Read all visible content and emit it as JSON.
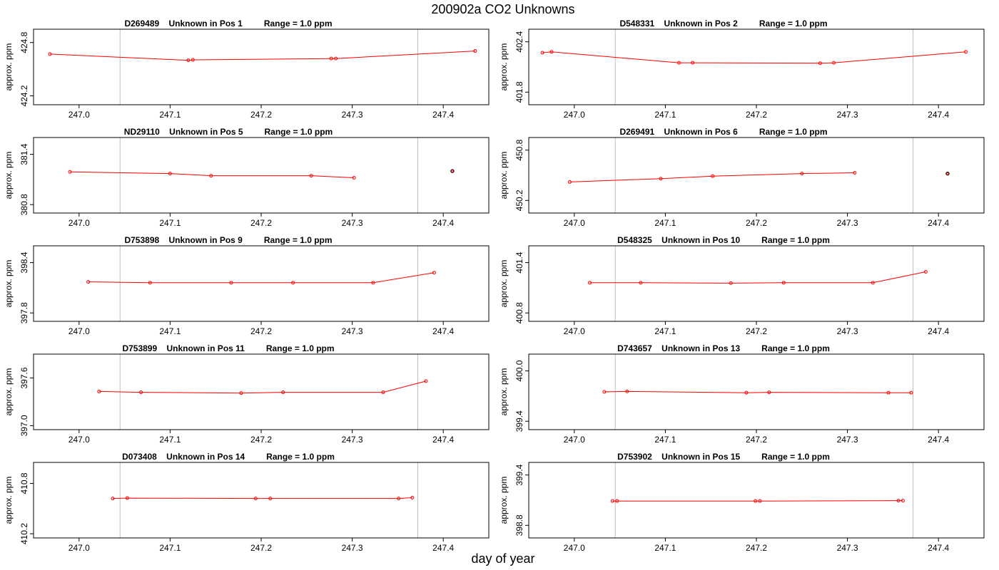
{
  "title": "200902a  CO2 Unknowns",
  "xlabel": "day of year",
  "chart_data": [
    {
      "type": "line",
      "title": "D269489    Unknown in Pos 1         Range = 1.0 ppm",
      "ylabel": "approx. ppm",
      "xlim": [
        246.95,
        247.45
      ],
      "ylim": [
        424.1,
        424.95
      ],
      "xticks": [
        "247.0",
        "247.1",
        "247.2",
        "247.3",
        "247.4"
      ],
      "yticks": [
        "424.2",
        "424.8"
      ],
      "vlines": [
        247.045,
        247.372
      ],
      "series": [
        {
          "x": [
            246.968,
            247.12,
            247.125,
            247.277,
            247.282,
            247.435
          ],
          "y": [
            424.67,
            424.6,
            424.605,
            424.62,
            424.62,
            424.705
          ]
        }
      ],
      "extra_points": []
    },
    {
      "type": "line",
      "title": "D548331    Unknown in Pos 2         Range = 1.0 ppm",
      "ylabel": "approx. ppm",
      "xlim": [
        246.95,
        247.45
      ],
      "ylim": [
        401.65,
        402.55
      ],
      "xticks": [
        "247.0",
        "247.1",
        "247.2",
        "247.3",
        "247.4"
      ],
      "yticks": [
        "401.8",
        "402.4"
      ],
      "vlines": [
        247.045,
        247.372
      ],
      "series": [
        {
          "x": [
            246.965,
            246.975,
            247.115,
            247.13,
            247.27,
            247.285,
            247.43
          ],
          "y": [
            402.27,
            402.28,
            402.15,
            402.15,
            402.145,
            402.15,
            402.28
          ]
        }
      ],
      "extra_points": []
    },
    {
      "type": "line",
      "title": "ND29110    Unknown in Pos 5         Range = 1.0 ppm",
      "ylabel": "approx. ppm",
      "xlim": [
        246.95,
        247.45
      ],
      "ylim": [
        380.7,
        381.6
      ],
      "xticks": [
        "247.0",
        "247.1",
        "247.2",
        "247.3",
        "247.4"
      ],
      "yticks": [
        "380.8",
        "381.4"
      ],
      "vlines": [
        247.045,
        247.372
      ],
      "series": [
        {
          "x": [
            246.99,
            247.1,
            247.145,
            247.255,
            247.302
          ],
          "y": [
            381.19,
            381.17,
            381.145,
            381.145,
            381.12
          ]
        }
      ],
      "extra_points": [
        {
          "x": 247.41,
          "y": 381.2
        }
      ]
    },
    {
      "type": "line",
      "title": "D269491    Unknown in Pos 6         Range = 1.0 ppm",
      "ylabel": "approx. ppm",
      "xlim": [
        246.95,
        247.45
      ],
      "ylim": [
        450.05,
        450.95
      ],
      "xticks": [
        "247.0",
        "247.1",
        "247.2",
        "247.3",
        "247.4"
      ],
      "yticks": [
        "450.2",
        "450.8"
      ],
      "vlines": [
        247.045,
        247.372
      ],
      "series": [
        {
          "x": [
            246.995,
            247.095,
            247.152,
            247.25,
            247.308
          ],
          "y": [
            450.42,
            450.46,
            450.49,
            450.52,
            450.53
          ]
        }
      ],
      "extra_points": [
        {
          "x": 247.41,
          "y": 450.52
        }
      ]
    },
    {
      "type": "line",
      "title": "D753898    Unknown in Pos 9         Range = 1.0 ppm",
      "ylabel": "approx. ppm",
      "xlim": [
        246.95,
        247.45
      ],
      "ylim": [
        397.7,
        398.6
      ],
      "xticks": [
        "247.0",
        "247.1",
        "247.2",
        "247.3",
        "247.4"
      ],
      "yticks": [
        "397.8",
        "398.4"
      ],
      "vlines": [
        247.045,
        247.372
      ],
      "series": [
        {
          "x": [
            247.01,
            247.078,
            247.167,
            247.235,
            247.323,
            247.39
          ],
          "y": [
            398.17,
            398.16,
            398.16,
            398.16,
            398.16,
            398.28
          ]
        }
      ],
      "extra_points": []
    },
    {
      "type": "line",
      "title": "D548325    Unknown in Pos 10         Range = 1.0 ppm",
      "ylabel": "approx. ppm",
      "xlim": [
        246.95,
        247.45
      ],
      "ylim": [
        400.7,
        401.6
      ],
      "xticks": [
        "247.0",
        "247.1",
        "247.2",
        "247.3",
        "247.4"
      ],
      "yticks": [
        "400.8",
        "401.4"
      ],
      "vlines": [
        247.045,
        247.372
      ],
      "series": [
        {
          "x": [
            247.017,
            247.073,
            247.172,
            247.23,
            247.328,
            247.386
          ],
          "y": [
            401.16,
            401.16,
            401.155,
            401.16,
            401.16,
            401.29
          ]
        }
      ],
      "extra_points": []
    },
    {
      "type": "line",
      "title": "D753899    Unknown in Pos 11         Range = 1.0 ppm",
      "ylabel": "approx. ppm",
      "xlim": [
        246.95,
        247.45
      ],
      "ylim": [
        396.95,
        397.9
      ],
      "xticks": [
        "247.0",
        "247.1",
        "247.2",
        "247.3",
        "247.4"
      ],
      "yticks": [
        "397.0",
        "397.6"
      ],
      "vlines": [
        247.045,
        247.372
      ],
      "series": [
        {
          "x": [
            247.022,
            247.068,
            247.178,
            247.224,
            247.334,
            247.381
          ],
          "y": [
            397.43,
            397.42,
            397.41,
            397.42,
            397.42,
            397.56
          ]
        }
      ],
      "extra_points": []
    },
    {
      "type": "line",
      "title": "D743657    Unknown in Pos 13         Range = 1.0 ppm",
      "ylabel": "approx. ppm",
      "xlim": [
        246.95,
        247.45
      ],
      "ylim": [
        399.3,
        400.2
      ],
      "xticks": [
        "247.0",
        "247.1",
        "247.2",
        "247.3",
        "247.4"
      ],
      "yticks": [
        "399.4",
        "400.0"
      ],
      "vlines": [
        247.045,
        247.372
      ],
      "series": [
        {
          "x": [
            247.033,
            247.058,
            247.189,
            247.214,
            247.345,
            247.37
          ],
          "y": [
            399.75,
            399.755,
            399.74,
            399.745,
            399.74,
            399.74
          ]
        }
      ],
      "extra_points": []
    },
    {
      "type": "line",
      "title": "D073408    Unknown in Pos 14         Range = 1.0 ppm",
      "ylabel": "approx. ppm",
      "xlim": [
        246.95,
        247.45
      ],
      "ylim": [
        410.15,
        411.05
      ],
      "xticks": [
        "247.0",
        "247.1",
        "247.2",
        "247.3",
        "247.4"
      ],
      "yticks": [
        "410.2",
        "410.8"
      ],
      "vlines": [
        247.045,
        247.372
      ],
      "series": [
        {
          "x": [
            247.037,
            247.053,
            247.194,
            247.21,
            247.351,
            247.366
          ],
          "y": [
            410.62,
            410.625,
            410.62,
            410.62,
            410.62,
            410.63
          ]
        }
      ],
      "extra_points": []
    },
    {
      "type": "line",
      "title": "D753902    Unknown in Pos 15         Range = 1.0 ppm",
      "ylabel": "approx. ppm",
      "xlim": [
        246.95,
        247.45
      ],
      "ylim": [
        398.65,
        399.55
      ],
      "xticks": [
        "247.0",
        "247.1",
        "247.2",
        "247.3",
        "247.4"
      ],
      "yticks": [
        "398.8",
        "399.4"
      ],
      "vlines": [
        247.045,
        247.372
      ],
      "series": [
        {
          "x": [
            247.042,
            247.047,
            247.199,
            247.204,
            247.356,
            247.361
          ],
          "y": [
            399.09,
            399.09,
            399.09,
            399.09,
            399.095,
            399.095
          ]
        }
      ],
      "extra_points": []
    }
  ]
}
